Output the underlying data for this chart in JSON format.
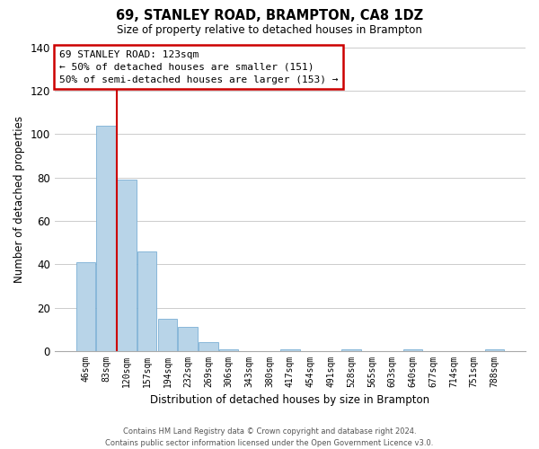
{
  "title": "69, STANLEY ROAD, BRAMPTON, CA8 1DZ",
  "subtitle": "Size of property relative to detached houses in Brampton",
  "xlabel": "Distribution of detached houses by size in Brampton",
  "ylabel": "Number of detached properties",
  "bar_labels": [
    "46sqm",
    "83sqm",
    "120sqm",
    "157sqm",
    "194sqm",
    "232sqm",
    "269sqm",
    "306sqm",
    "343sqm",
    "380sqm",
    "417sqm",
    "454sqm",
    "491sqm",
    "528sqm",
    "565sqm",
    "603sqm",
    "640sqm",
    "677sqm",
    "714sqm",
    "751sqm",
    "788sqm"
  ],
  "bar_heights": [
    41,
    104,
    79,
    46,
    15,
    11,
    4,
    1,
    0,
    0,
    1,
    0,
    0,
    1,
    0,
    0,
    1,
    0,
    0,
    0,
    1
  ],
  "bar_color": "#b8d4e8",
  "bar_edge_color": "#7bafd4",
  "highlight_line_color": "#cc0000",
  "ylim": [
    0,
    140
  ],
  "yticks": [
    0,
    20,
    40,
    60,
    80,
    100,
    120,
    140
  ],
  "annotation_title": "69 STANLEY ROAD: 123sqm",
  "annotation_line1": "← 50% of detached houses are smaller (151)",
  "annotation_line2": "50% of semi-detached houses are larger (153) →",
  "footer_line1": "Contains HM Land Registry data © Crown copyright and database right 2024.",
  "footer_line2": "Contains public sector information licensed under the Open Government Licence v3.0.",
  "background_color": "#ffffff",
  "grid_color": "#cccccc"
}
